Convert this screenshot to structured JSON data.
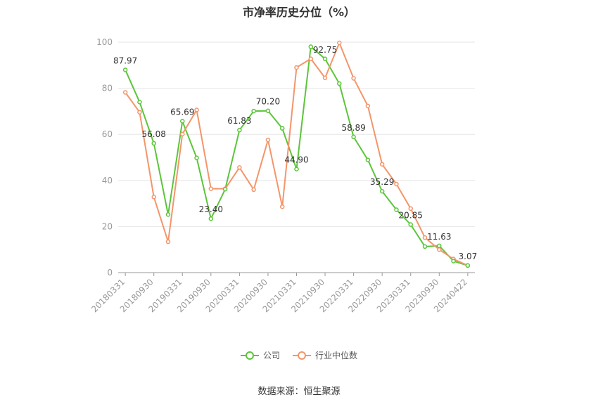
{
  "chart_data": {
    "type": "line",
    "title": "市净率历史分位（%）",
    "source": "数据来源：恒生聚源",
    "ylim": [
      0,
      100
    ],
    "yticks": [
      0,
      20,
      40,
      60,
      80,
      100
    ],
    "grid": true,
    "legend_position": "bottom",
    "x_tick_labels": [
      "20180331",
      "20180930",
      "20190331",
      "20190930",
      "20200331",
      "20200930",
      "20210331",
      "20210930",
      "20220331",
      "20220930",
      "20230331",
      "20230930",
      "20240422"
    ],
    "x": [
      "20180331",
      "20180630",
      "20180930",
      "20181231",
      "20190331",
      "20190630",
      "20190930",
      "20191231",
      "20200331",
      "20200630",
      "20200930",
      "20201231",
      "20210331",
      "20210630",
      "20210930",
      "20211231",
      "20220331",
      "20220630",
      "20220930",
      "20221231",
      "20230331",
      "20230630",
      "20230930",
      "20231231",
      "20240422"
    ],
    "series": [
      {
        "name": "公司",
        "color": "#5cc53a",
        "values": [
          87.97,
          74.0,
          56.08,
          25.2,
          65.69,
          49.8,
          23.4,
          36.2,
          61.83,
          70.1,
          70.2,
          62.6,
          44.9,
          98.0,
          92.75,
          82.0,
          58.89,
          48.9,
          35.29,
          27.3,
          20.85,
          11.3,
          11.63,
          5.0,
          3.07
        ],
        "labeled_indices": [
          0,
          2,
          4,
          6,
          8,
          10,
          12,
          14,
          16,
          18,
          20,
          22,
          24
        ]
      },
      {
        "name": "行业中位数",
        "color": "#f4956a",
        "values": [
          78.2,
          69.6,
          32.8,
          13.4,
          60.1,
          70.6,
          36.4,
          36.4,
          45.6,
          36.0,
          57.6,
          28.6,
          89.0,
          92.8,
          84.5,
          99.7,
          84.3,
          72.3,
          47.0,
          38.4,
          27.8,
          15.2,
          10.0,
          5.9,
          3.07
        ]
      }
    ]
  }
}
